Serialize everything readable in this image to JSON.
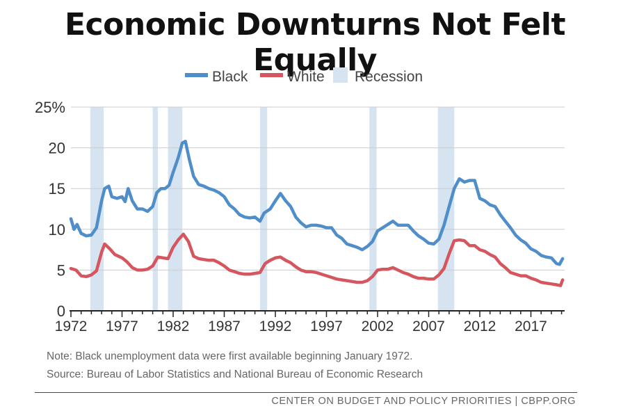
{
  "title": "Economic Downturns Not Felt Equally",
  "note": "Note: Black unemployment data were first available beginning January 1972.",
  "source": "Source: Bureau of Labor Statistics and National Bureau of Economic Research",
  "footer": "CENTER ON BUDGET AND POLICY PRIORITIES | CBPP.ORG",
  "colors": {
    "black": "#4f8ec9",
    "white": "#d5565f",
    "recession": "#d6e3f1",
    "grid": "#cccccc",
    "axis": "#222222"
  },
  "chart_data": {
    "type": "line",
    "xlim": [
      1972,
      2020.3
    ],
    "ylim": [
      0,
      25
    ],
    "x_ticks": [
      "1972",
      "1977",
      "1982",
      "1987",
      "1992",
      "1997",
      "2002",
      "2007",
      "2012",
      "2017"
    ],
    "y_ticks": [
      "0",
      "5",
      "10",
      "15",
      "20",
      "25%"
    ],
    "grid": true,
    "legend_position": "top-center",
    "legend": [
      "Black",
      "White",
      "Recession"
    ],
    "recessions": [
      [
        1973.9,
        1975.2
      ],
      [
        1980.0,
        1980.5
      ],
      [
        1981.5,
        1982.9
      ],
      [
        1990.5,
        1991.2
      ],
      [
        2001.2,
        2001.9
      ],
      [
        2007.9,
        2009.5
      ]
    ],
    "series": [
      {
        "name": "Black",
        "points": [
          [
            1972.0,
            11.3
          ],
          [
            1972.3,
            10.0
          ],
          [
            1972.6,
            10.6
          ],
          [
            1973.0,
            9.5
          ],
          [
            1973.5,
            9.2
          ],
          [
            1974.0,
            9.3
          ],
          [
            1974.5,
            10.2
          ],
          [
            1975.0,
            13.5
          ],
          [
            1975.3,
            15.0
          ],
          [
            1975.7,
            15.3
          ],
          [
            1976.0,
            14.0
          ],
          [
            1976.5,
            13.8
          ],
          [
            1977.0,
            14.0
          ],
          [
            1977.3,
            13.4
          ],
          [
            1977.6,
            15.0
          ],
          [
            1978.0,
            13.5
          ],
          [
            1978.5,
            12.5
          ],
          [
            1979.0,
            12.5
          ],
          [
            1979.5,
            12.2
          ],
          [
            1980.0,
            12.8
          ],
          [
            1980.4,
            14.5
          ],
          [
            1980.8,
            15.0
          ],
          [
            1981.2,
            15.0
          ],
          [
            1981.6,
            15.4
          ],
          [
            1982.0,
            17.0
          ],
          [
            1982.5,
            18.8
          ],
          [
            1982.9,
            20.6
          ],
          [
            1983.2,
            20.8
          ],
          [
            1983.6,
            18.5
          ],
          [
            1984.0,
            16.5
          ],
          [
            1984.5,
            15.5
          ],
          [
            1985.0,
            15.3
          ],
          [
            1985.5,
            15.0
          ],
          [
            1986.0,
            14.8
          ],
          [
            1986.5,
            14.5
          ],
          [
            1987.0,
            14.0
          ],
          [
            1987.5,
            13.0
          ],
          [
            1988.0,
            12.5
          ],
          [
            1988.5,
            11.8
          ],
          [
            1989.0,
            11.5
          ],
          [
            1989.5,
            11.4
          ],
          [
            1990.0,
            11.5
          ],
          [
            1990.5,
            11.0
          ],
          [
            1990.9,
            12.0
          ],
          [
            1991.5,
            12.5
          ],
          [
            1992.0,
            13.5
          ],
          [
            1992.5,
            14.4
          ],
          [
            1993.0,
            13.5
          ],
          [
            1993.5,
            12.8
          ],
          [
            1994.0,
            11.5
          ],
          [
            1994.5,
            10.8
          ],
          [
            1995.0,
            10.3
          ],
          [
            1995.5,
            10.5
          ],
          [
            1996.0,
            10.5
          ],
          [
            1996.5,
            10.4
          ],
          [
            1997.0,
            10.2
          ],
          [
            1997.5,
            10.2
          ],
          [
            1998.0,
            9.3
          ],
          [
            1998.5,
            8.9
          ],
          [
            1999.0,
            8.2
          ],
          [
            1999.5,
            8.0
          ],
          [
            2000.0,
            7.8
          ],
          [
            2000.5,
            7.5
          ],
          [
            2001.0,
            7.9
          ],
          [
            2001.5,
            8.5
          ],
          [
            2002.0,
            9.8
          ],
          [
            2002.5,
            10.2
          ],
          [
            2003.0,
            10.6
          ],
          [
            2003.5,
            11.0
          ],
          [
            2004.0,
            10.5
          ],
          [
            2004.5,
            10.5
          ],
          [
            2005.0,
            10.5
          ],
          [
            2005.5,
            9.8
          ],
          [
            2006.0,
            9.2
          ],
          [
            2006.5,
            8.8
          ],
          [
            2007.0,
            8.3
          ],
          [
            2007.5,
            8.2
          ],
          [
            2008.0,
            8.8
          ],
          [
            2008.5,
            10.5
          ],
          [
            2009.0,
            12.8
          ],
          [
            2009.5,
            15.0
          ],
          [
            2010.0,
            16.2
          ],
          [
            2010.5,
            15.8
          ],
          [
            2011.0,
            16.0
          ],
          [
            2011.5,
            16.0
          ],
          [
            2012.0,
            13.8
          ],
          [
            2012.5,
            13.5
          ],
          [
            2013.0,
            13.0
          ],
          [
            2013.5,
            12.8
          ],
          [
            2014.0,
            11.8
          ],
          [
            2014.5,
            11.0
          ],
          [
            2015.0,
            10.2
          ],
          [
            2015.5,
            9.3
          ],
          [
            2016.0,
            8.7
          ],
          [
            2016.5,
            8.3
          ],
          [
            2017.0,
            7.6
          ],
          [
            2017.5,
            7.3
          ],
          [
            2018.0,
            6.8
          ],
          [
            2018.5,
            6.6
          ],
          [
            2019.0,
            6.5
          ],
          [
            2019.5,
            5.8
          ],
          [
            2019.8,
            5.7
          ],
          [
            2020.1,
            6.4
          ]
        ]
      },
      {
        "name": "White",
        "points": [
          [
            1972.0,
            5.2
          ],
          [
            1972.5,
            5.0
          ],
          [
            1973.0,
            4.3
          ],
          [
            1973.5,
            4.2
          ],
          [
            1974.0,
            4.4
          ],
          [
            1974.5,
            4.9
          ],
          [
            1975.0,
            7.2
          ],
          [
            1975.3,
            8.2
          ],
          [
            1975.8,
            7.6
          ],
          [
            1976.3,
            6.9
          ],
          [
            1977.0,
            6.5
          ],
          [
            1977.5,
            6.0
          ],
          [
            1978.0,
            5.3
          ],
          [
            1978.5,
            5.0
          ],
          [
            1979.0,
            5.0
          ],
          [
            1979.5,
            5.1
          ],
          [
            1980.0,
            5.5
          ],
          [
            1980.5,
            6.6
          ],
          [
            1981.0,
            6.5
          ],
          [
            1981.5,
            6.4
          ],
          [
            1982.0,
            7.8
          ],
          [
            1982.5,
            8.7
          ],
          [
            1983.0,
            9.4
          ],
          [
            1983.5,
            8.5
          ],
          [
            1984.0,
            6.7
          ],
          [
            1984.5,
            6.4
          ],
          [
            1985.0,
            6.3
          ],
          [
            1985.5,
            6.2
          ],
          [
            1986.0,
            6.2
          ],
          [
            1986.5,
            5.9
          ],
          [
            1987.0,
            5.5
          ],
          [
            1987.5,
            5.0
          ],
          [
            1988.0,
            4.8
          ],
          [
            1988.5,
            4.6
          ],
          [
            1989.0,
            4.5
          ],
          [
            1989.5,
            4.5
          ],
          [
            1990.0,
            4.6
          ],
          [
            1990.5,
            4.7
          ],
          [
            1991.0,
            5.8
          ],
          [
            1991.5,
            6.2
          ],
          [
            1992.0,
            6.5
          ],
          [
            1992.5,
            6.6
          ],
          [
            1993.0,
            6.2
          ],
          [
            1993.5,
            5.9
          ],
          [
            1994.0,
            5.4
          ],
          [
            1994.5,
            5.0
          ],
          [
            1995.0,
            4.8
          ],
          [
            1995.5,
            4.8
          ],
          [
            1996.0,
            4.7
          ],
          [
            1996.5,
            4.5
          ],
          [
            1997.0,
            4.3
          ],
          [
            1997.5,
            4.1
          ],
          [
            1998.0,
            3.9
          ],
          [
            1998.5,
            3.8
          ],
          [
            1999.0,
            3.7
          ],
          [
            1999.5,
            3.6
          ],
          [
            2000.0,
            3.5
          ],
          [
            2000.5,
            3.5
          ],
          [
            2001.0,
            3.7
          ],
          [
            2001.5,
            4.2
          ],
          [
            2002.0,
            5.0
          ],
          [
            2002.5,
            5.1
          ],
          [
            2003.0,
            5.1
          ],
          [
            2003.5,
            5.3
          ],
          [
            2004.0,
            5.0
          ],
          [
            2004.5,
            4.7
          ],
          [
            2005.0,
            4.5
          ],
          [
            2005.5,
            4.2
          ],
          [
            2006.0,
            4.0
          ],
          [
            2006.5,
            4.0
          ],
          [
            2007.0,
            3.9
          ],
          [
            2007.5,
            3.9
          ],
          [
            2008.0,
            4.4
          ],
          [
            2008.5,
            5.2
          ],
          [
            2009.0,
            7.0
          ],
          [
            2009.5,
            8.6
          ],
          [
            2010.0,
            8.7
          ],
          [
            2010.5,
            8.6
          ],
          [
            2011.0,
            8.0
          ],
          [
            2011.5,
            8.0
          ],
          [
            2012.0,
            7.5
          ],
          [
            2012.5,
            7.3
          ],
          [
            2013.0,
            6.9
          ],
          [
            2013.5,
            6.6
          ],
          [
            2014.0,
            5.8
          ],
          [
            2014.5,
            5.3
          ],
          [
            2015.0,
            4.7
          ],
          [
            2015.5,
            4.5
          ],
          [
            2016.0,
            4.3
          ],
          [
            2016.5,
            4.3
          ],
          [
            2017.0,
            4.0
          ],
          [
            2017.5,
            3.8
          ],
          [
            2018.0,
            3.5
          ],
          [
            2018.5,
            3.4
          ],
          [
            2019.0,
            3.3
          ],
          [
            2019.5,
            3.2
          ],
          [
            2019.9,
            3.1
          ],
          [
            2020.1,
            3.8
          ]
        ]
      }
    ]
  }
}
